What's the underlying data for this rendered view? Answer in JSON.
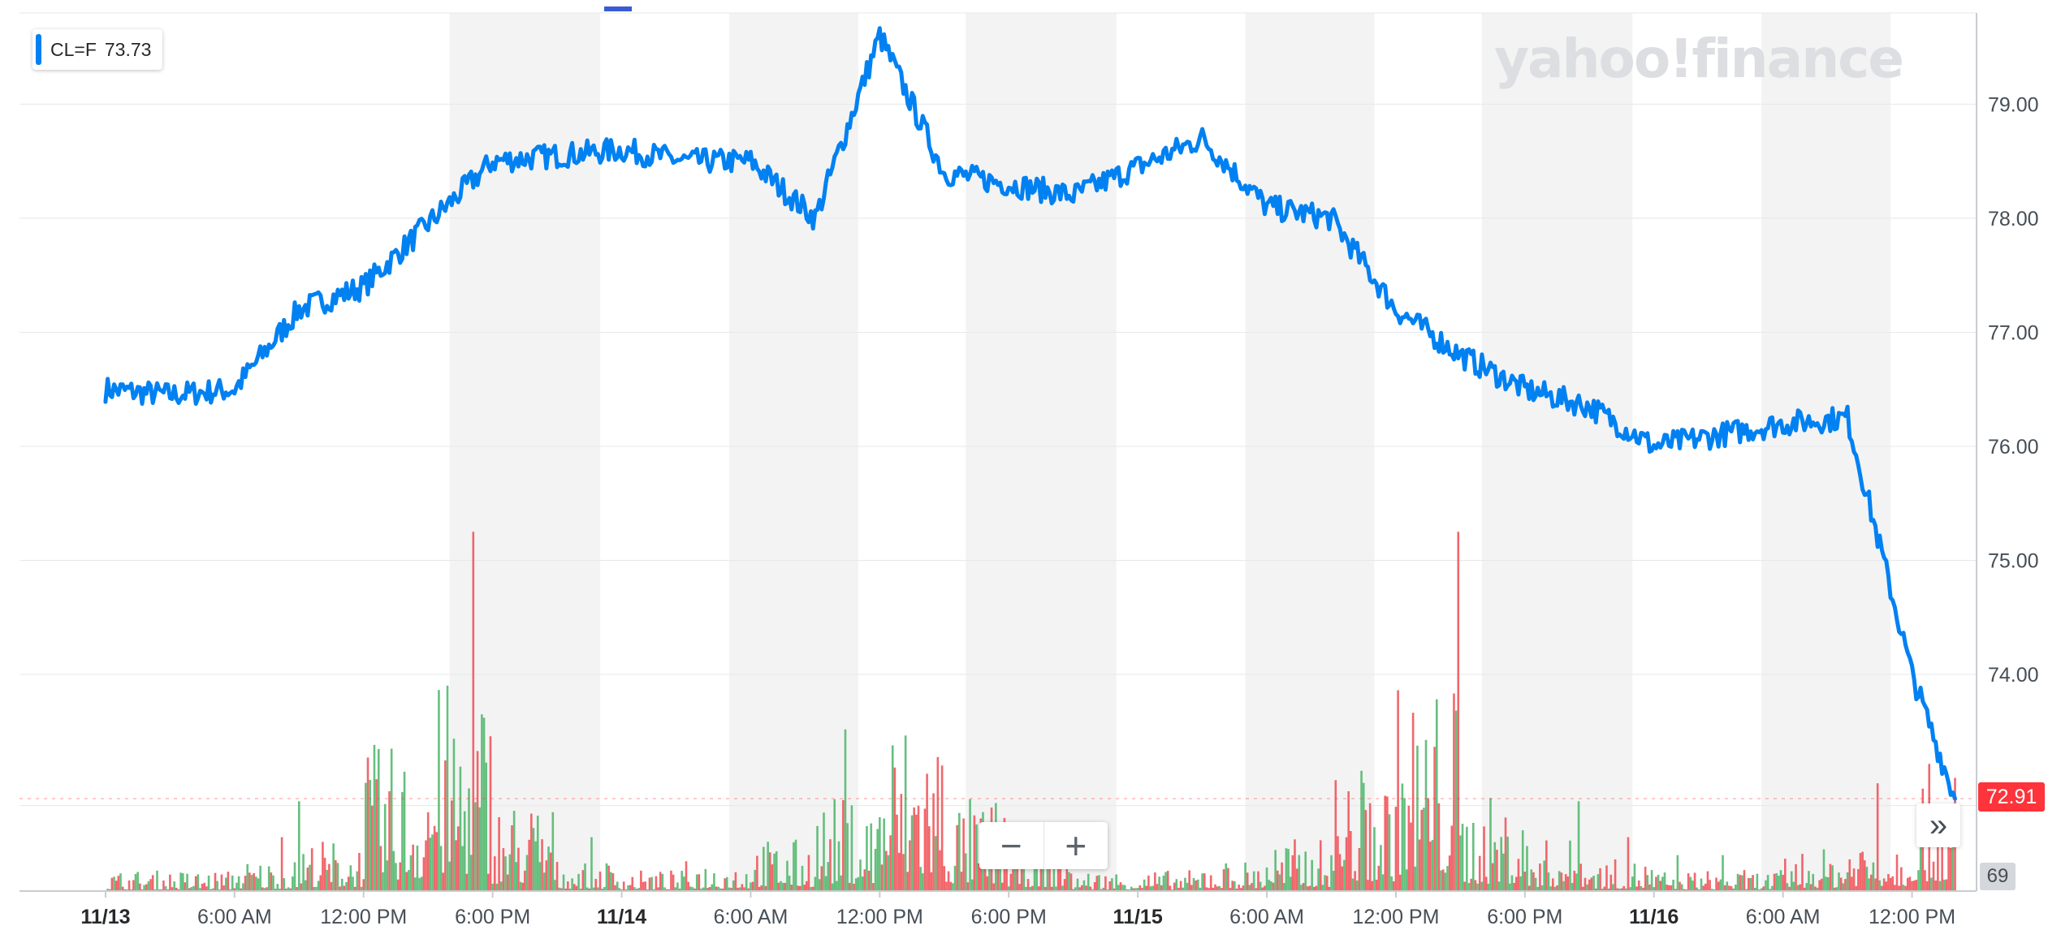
{
  "legend": {
    "symbol": "CL=F",
    "value": "73.73",
    "color": "#0081f2"
  },
  "brand": "yahoo!finance",
  "last_price": "72.91",
  "volume_label": "69",
  "zoom": {
    "minus": "−",
    "plus": "+"
  },
  "expand_icon": "»",
  "colors": {
    "line": "#0081f2",
    "shade": "#f3f3f3",
    "grid": "#e6e8ea",
    "volume_up": "#55b870",
    "volume_down": "#f0575c",
    "last_tag": "#ff333a"
  },
  "chart_data": {
    "type": "line",
    "series": [
      {
        "name": "CL=F",
        "x": [
          "11/13 00:00",
          "11/13 03:00",
          "11/13 06:00",
          "11/13 09:00",
          "11/13 12:00",
          "11/13 15:00",
          "11/13 18:00",
          "11/13 21:00",
          "11/14 00:00",
          "11/14 03:00",
          "11/14 06:00",
          "11/14 09:00",
          "11/14 12:00",
          "11/14 15:00",
          "11/14 18:00",
          "11/14 21:00",
          "11/15 00:00",
          "11/15 03:00",
          "11/15 06:00",
          "11/15 09:00",
          "11/15 12:00",
          "11/15 15:00",
          "11/15 18:00",
          "11/15 21:00",
          "11/16 00:00",
          "11/16 03:00",
          "11/16 06:00",
          "11/16 09:00",
          "11/16 12:00",
          "11/16 14:00"
        ],
        "values": [
          76.5,
          76.45,
          76.5,
          77.2,
          77.4,
          77.95,
          78.5,
          78.55,
          78.6,
          78.5,
          78.5,
          78.0,
          79.6,
          78.4,
          78.3,
          78.2,
          78.45,
          78.7,
          78.1,
          78.0,
          77.2,
          76.8,
          76.5,
          76.35,
          76.0,
          76.1,
          76.2,
          76.25,
          74.0,
          72.91
        ]
      }
    ],
    "volume": [
      2,
      2,
      3,
      5,
      14,
      20,
      9,
      3,
      2,
      3,
      5,
      9,
      17,
      9,
      5,
      2,
      2,
      3,
      5,
      12,
      20,
      9,
      5,
      3,
      2,
      2,
      4,
      6,
      12,
      8
    ],
    "xticks": [
      {
        "at": "11/13 00:00",
        "label": "11/13",
        "bold": true
      },
      {
        "at": "11/13 06:00",
        "label": "6:00 AM"
      },
      {
        "at": "11/13 12:00",
        "label": "12:00 PM"
      },
      {
        "at": "11/13 18:00",
        "label": "6:00 PM"
      },
      {
        "at": "11/14 00:00",
        "label": "11/14",
        "bold": true
      },
      {
        "at": "11/14 06:00",
        "label": "6:00 AM"
      },
      {
        "at": "11/14 12:00",
        "label": "12:00 PM"
      },
      {
        "at": "11/14 18:00",
        "label": "6:00 PM"
      },
      {
        "at": "11/15 00:00",
        "label": "11/15",
        "bold": true
      },
      {
        "at": "11/15 06:00",
        "label": "6:00 AM"
      },
      {
        "at": "11/15 12:00",
        "label": "12:00 PM"
      },
      {
        "at": "11/15 18:00",
        "label": "6:00 PM"
      },
      {
        "at": "11/16 00:00",
        "label": "11/16",
        "bold": true
      },
      {
        "at": "11/16 06:00",
        "label": "6:00 AM"
      },
      {
        "at": "11/16 12:00",
        "label": "12:00 PM"
      }
    ],
    "yticks": [
      "79.00",
      "78.00",
      "77.00",
      "76.00",
      "75.00",
      "74.00"
    ],
    "ylim": [
      72.1,
      79.8
    ],
    "xlim": [
      "11/12 20:00",
      "11/16 15:00"
    ],
    "grid": true,
    "legend_position": "top-left"
  }
}
